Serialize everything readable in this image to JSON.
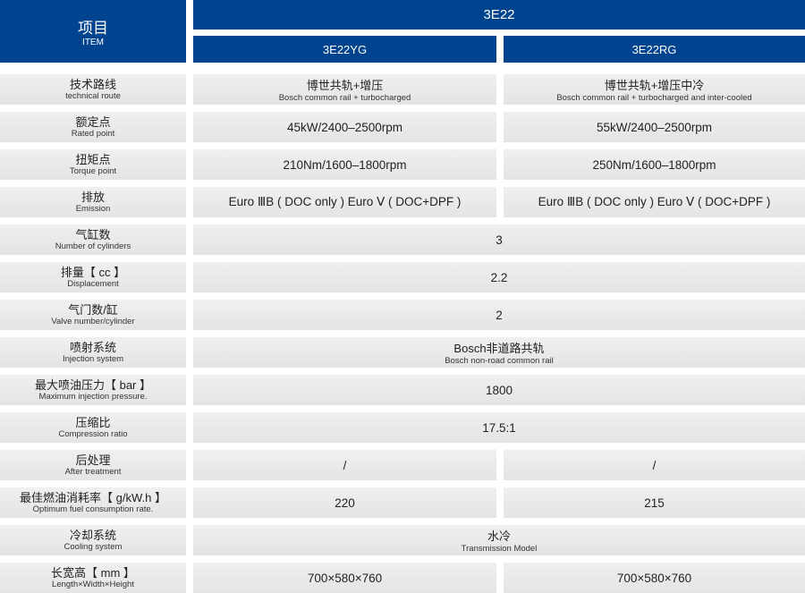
{
  "header": {
    "item_zh": "项目",
    "item_en": "ITEM",
    "model": "3E22",
    "variants": [
      "3E22YG",
      "3E22RG"
    ]
  },
  "colors": {
    "header_blue": "#00448f",
    "cell_gray": "#e8e8e8"
  },
  "rows": [
    {
      "zh": "技术路线",
      "en": "technical route",
      "cells": [
        {
          "main": "博世共轨+增压",
          "sub": "Bosch common rail + turbocharged"
        },
        {
          "main": "博世共轨+增压中冷",
          "sub": "Bosch common rail + turbocharged and inter-cooled"
        }
      ]
    },
    {
      "zh": "额定点",
      "en": "Rated point",
      "cells": [
        {
          "main": "45kW/2400–2500rpm"
        },
        {
          "main": "55kW/2400–2500rpm"
        }
      ]
    },
    {
      "zh": "扭矩点",
      "en": "Torque point",
      "cells": [
        {
          "main": "210Nm/1600–1800rpm"
        },
        {
          "main": "250Nm/1600–1800rpm"
        }
      ]
    },
    {
      "zh": "排放",
      "en": "Emission",
      "cells": [
        {
          "main": "Euro ⅢB ( DOC only ) Euro Ⅴ ( DOC+DPF )"
        },
        {
          "main": "Euro ⅢB ( DOC only ) Euro Ⅴ ( DOC+DPF )"
        }
      ]
    },
    {
      "zh": "气缸数",
      "en": "Number of cylinders",
      "cells": [
        {
          "main": "3"
        }
      ]
    },
    {
      "zh": "排量【 cc 】",
      "en": "Displacement",
      "cells": [
        {
          "main": "2.2"
        }
      ]
    },
    {
      "zh": "气门数/缸",
      "en": "Valve number/cylinder",
      "cells": [
        {
          "main": "2"
        }
      ]
    },
    {
      "zh": "喷射系统",
      "en": "Injection system",
      "cells": [
        {
          "main": "Bosch非道路共轨",
          "sub": "Bosch non-road common rail"
        }
      ]
    },
    {
      "zh": "最大喷油压力【 bar 】",
      "en": "Maximum injection pressure.",
      "cells": [
        {
          "main": "1800"
        }
      ]
    },
    {
      "zh": "压缩比",
      "en": "Compression ratio",
      "cells": [
        {
          "main": "17.5:1"
        }
      ]
    },
    {
      "zh": "后处理",
      "en": "After treatment",
      "cells": [
        {
          "main": "/"
        },
        {
          "main": "/"
        }
      ]
    },
    {
      "zh": "最佳燃油消耗率【 g/kW.h 】",
      "en": "Optimum fuel consumption rate.",
      "cells": [
        {
          "main": "220"
        },
        {
          "main": "215"
        }
      ]
    },
    {
      "zh": "冷却系统",
      "en": "Cooling system",
      "cells": [
        {
          "main": "水冷",
          "sub": "Transmission Model"
        }
      ]
    },
    {
      "zh": "长宽高【 mm 】",
      "en": "Length×Width×Height",
      "cells": [
        {
          "main": "700×580×760"
        },
        {
          "main": "700×580×760"
        }
      ]
    }
  ]
}
